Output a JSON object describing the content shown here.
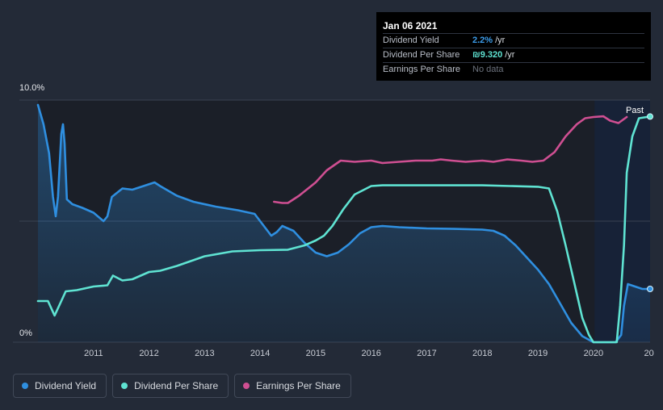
{
  "tooltip": {
    "date": "Jan 06 2021",
    "rows": [
      {
        "name": "Dividend Yield",
        "value": "2.2%",
        "unit": "/yr",
        "color": "#3b9be8"
      },
      {
        "name": "Dividend Per Share",
        "value": "₪9.320",
        "unit": "/yr",
        "color": "#5fe3d2"
      },
      {
        "name": "Earnings Per Share",
        "value": "",
        "unit": "No data",
        "color": "#6c727d"
      }
    ]
  },
  "legend": [
    {
      "label": "Dividend Yield",
      "color": "#2f8fe0"
    },
    {
      "label": "Dividend Per Share",
      "color": "#5fe3d2"
    },
    {
      "label": "Earnings Per Share",
      "color": "#cf4f92"
    }
  ],
  "chart_data": {
    "type": "line",
    "y_axis_labels": [
      "10.0%",
      "0%"
    ],
    "ylim": [
      0,
      10
    ],
    "xlim": [
      2010.0,
      2021.02
    ],
    "x_ticks": [
      "2011",
      "2012",
      "2013",
      "2014",
      "2015",
      "2016",
      "2017",
      "2018",
      "2019",
      "2020",
      "20"
    ],
    "x_tick_values": [
      2011,
      2012,
      2013,
      2014,
      2015,
      2016,
      2017,
      2018,
      2019,
      2020,
      2021
    ],
    "past_label": "Past",
    "forecast_start": 2020.02,
    "grid": true,
    "legend_position": "bottom-left",
    "series": [
      {
        "name": "Dividend Yield",
        "color": "#2f8fe0",
        "area": true,
        "points": [
          [
            2010.0,
            9.8
          ],
          [
            2010.1,
            9.0
          ],
          [
            2010.2,
            7.8
          ],
          [
            2010.27,
            6.0
          ],
          [
            2010.32,
            5.2
          ],
          [
            2010.36,
            6.0
          ],
          [
            2010.42,
            8.6
          ],
          [
            2010.45,
            9.0
          ],
          [
            2010.48,
            8.2
          ],
          [
            2010.52,
            5.9
          ],
          [
            2010.62,
            5.7
          ],
          [
            2010.8,
            5.55
          ],
          [
            2011.0,
            5.35
          ],
          [
            2011.18,
            5.0
          ],
          [
            2011.25,
            5.2
          ],
          [
            2011.33,
            6.0
          ],
          [
            2011.52,
            6.35
          ],
          [
            2011.7,
            6.3
          ],
          [
            2011.9,
            6.45
          ],
          [
            2012.1,
            6.6
          ],
          [
            2012.2,
            6.45
          ],
          [
            2012.5,
            6.05
          ],
          [
            2012.8,
            5.8
          ],
          [
            2013.2,
            5.6
          ],
          [
            2013.6,
            5.45
          ],
          [
            2013.9,
            5.3
          ],
          [
            2014.05,
            4.85
          ],
          [
            2014.2,
            4.4
          ],
          [
            2014.3,
            4.55
          ],
          [
            2014.4,
            4.8
          ],
          [
            2014.6,
            4.6
          ],
          [
            2014.8,
            4.1
          ],
          [
            2015.0,
            3.7
          ],
          [
            2015.2,
            3.55
          ],
          [
            2015.4,
            3.7
          ],
          [
            2015.6,
            4.05
          ],
          [
            2015.8,
            4.5
          ],
          [
            2016.0,
            4.75
          ],
          [
            2016.2,
            4.8
          ],
          [
            2016.5,
            4.75
          ],
          [
            2017.0,
            4.7
          ],
          [
            2017.5,
            4.68
          ],
          [
            2018.0,
            4.65
          ],
          [
            2018.2,
            4.6
          ],
          [
            2018.4,
            4.4
          ],
          [
            2018.6,
            4.0
          ],
          [
            2018.8,
            3.5
          ],
          [
            2019.0,
            3.0
          ],
          [
            2019.2,
            2.4
          ],
          [
            2019.4,
            1.6
          ],
          [
            2019.6,
            0.8
          ],
          [
            2019.8,
            0.25
          ],
          [
            2020.0,
            0.0
          ],
          [
            2020.4,
            0.0
          ],
          [
            2020.5,
            0.3
          ],
          [
            2020.55,
            1.5
          ],
          [
            2020.62,
            2.4
          ],
          [
            2020.75,
            2.3
          ],
          [
            2020.88,
            2.2
          ],
          [
            2021.02,
            2.2
          ]
        ]
      },
      {
        "name": "Dividend Per Share",
        "color": "#5fe3d2",
        "area": false,
        "points": [
          [
            2010.0,
            1.7
          ],
          [
            2010.18,
            1.7
          ],
          [
            2010.3,
            1.1
          ],
          [
            2010.42,
            1.7
          ],
          [
            2010.5,
            2.1
          ],
          [
            2010.7,
            2.15
          ],
          [
            2011.0,
            2.3
          ],
          [
            2011.25,
            2.35
          ],
          [
            2011.35,
            2.75
          ],
          [
            2011.52,
            2.55
          ],
          [
            2011.7,
            2.6
          ],
          [
            2012.0,
            2.9
          ],
          [
            2012.2,
            2.95
          ],
          [
            2012.5,
            3.15
          ],
          [
            2013.0,
            3.55
          ],
          [
            2013.5,
            3.75
          ],
          [
            2014.0,
            3.8
          ],
          [
            2014.5,
            3.82
          ],
          [
            2014.8,
            4.0
          ],
          [
            2015.0,
            4.2
          ],
          [
            2015.15,
            4.4
          ],
          [
            2015.3,
            4.8
          ],
          [
            2015.5,
            5.5
          ],
          [
            2015.7,
            6.1
          ],
          [
            2016.0,
            6.45
          ],
          [
            2016.2,
            6.48
          ],
          [
            2017.0,
            6.48
          ],
          [
            2018.0,
            6.48
          ],
          [
            2018.5,
            6.45
          ],
          [
            2019.0,
            6.42
          ],
          [
            2019.2,
            6.35
          ],
          [
            2019.35,
            5.4
          ],
          [
            2019.5,
            4.0
          ],
          [
            2019.65,
            2.5
          ],
          [
            2019.8,
            1.0
          ],
          [
            2019.92,
            0.3
          ],
          [
            2020.0,
            0.0
          ],
          [
            2020.42,
            0.0
          ],
          [
            2020.48,
            1.5
          ],
          [
            2020.55,
            4.0
          ],
          [
            2020.6,
            7.0
          ],
          [
            2020.7,
            8.5
          ],
          [
            2020.82,
            9.25
          ],
          [
            2021.02,
            9.32
          ]
        ]
      },
      {
        "name": "Earnings Per Share",
        "color": "#cf4f92",
        "area": false,
        "points": [
          [
            2014.25,
            5.8
          ],
          [
            2014.4,
            5.75
          ],
          [
            2014.5,
            5.75
          ],
          [
            2014.7,
            6.05
          ],
          [
            2015.0,
            6.6
          ],
          [
            2015.2,
            7.1
          ],
          [
            2015.45,
            7.5
          ],
          [
            2015.7,
            7.45
          ],
          [
            2016.0,
            7.5
          ],
          [
            2016.2,
            7.4
          ],
          [
            2016.5,
            7.45
          ],
          [
            2016.8,
            7.5
          ],
          [
            2017.1,
            7.5
          ],
          [
            2017.25,
            7.55
          ],
          [
            2017.45,
            7.5
          ],
          [
            2017.7,
            7.45
          ],
          [
            2018.0,
            7.5
          ],
          [
            2018.2,
            7.45
          ],
          [
            2018.45,
            7.55
          ],
          [
            2018.7,
            7.5
          ],
          [
            2018.9,
            7.45
          ],
          [
            2019.1,
            7.5
          ],
          [
            2019.3,
            7.85
          ],
          [
            2019.5,
            8.5
          ],
          [
            2019.7,
            9.0
          ],
          [
            2019.85,
            9.25
          ],
          [
            2020.0,
            9.3
          ],
          [
            2020.18,
            9.33
          ],
          [
            2020.3,
            9.15
          ],
          [
            2020.45,
            9.05
          ],
          [
            2020.6,
            9.3
          ]
        ]
      }
    ]
  }
}
